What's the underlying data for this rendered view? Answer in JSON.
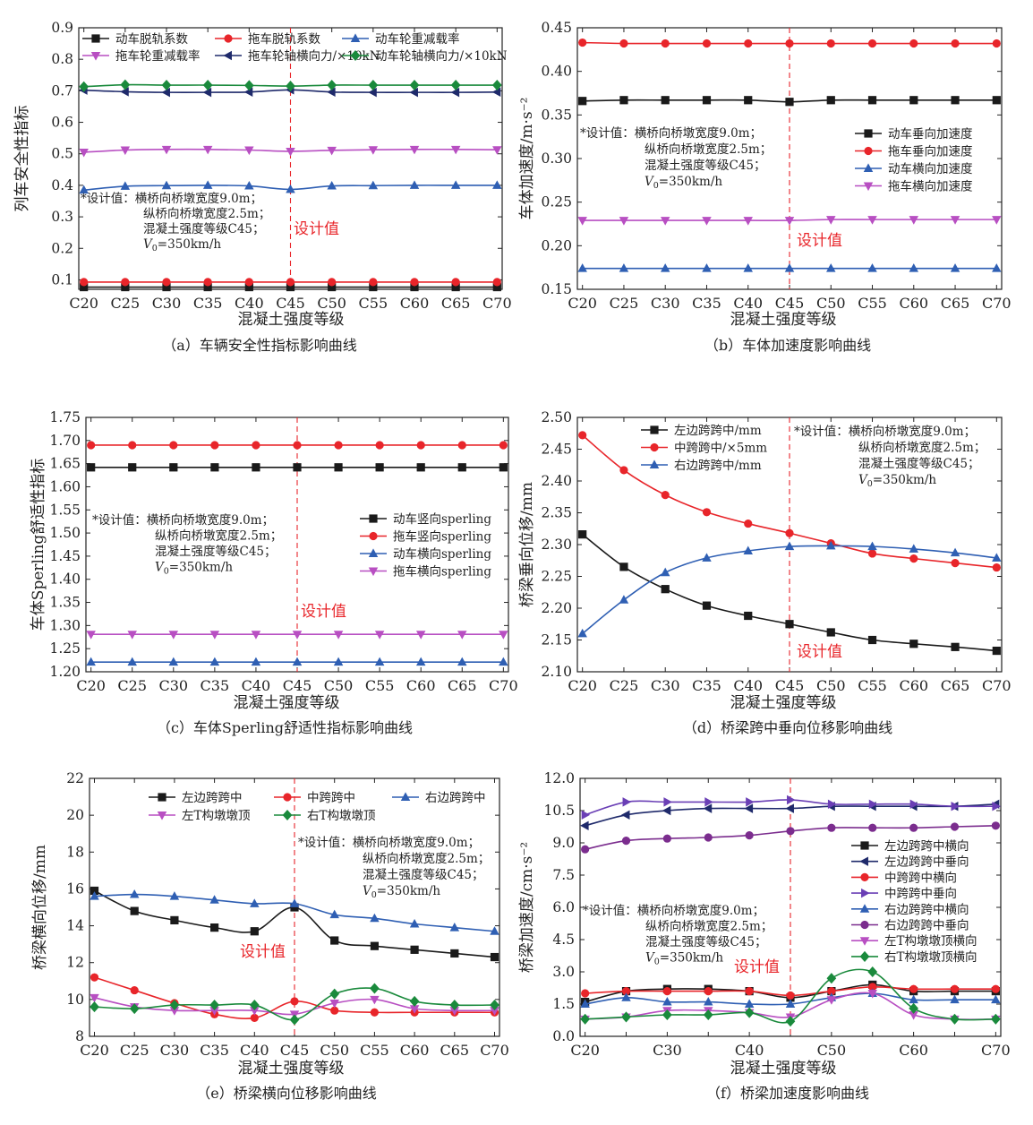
{
  "chart_data": [
    {
      "id": "a",
      "type": "line",
      "caption": "（a）车辆安全性指标影响曲线",
      "xlabel": "混凝土强度等级",
      "ylabel": "列车安全性指标",
      "categories": [
        "C20",
        "C25",
        "C30",
        "C35",
        "C40",
        "C45",
        "C50",
        "C55",
        "C60",
        "C65",
        "C70"
      ],
      "xtick_labels": [
        "C20",
        "C25",
        "C30",
        "C35",
        "C40",
        "C45",
        "C50",
        "C55",
        "C60",
        "C65",
        "C70"
      ],
      "ylim": [
        0.07,
        0.9
      ],
      "yticks": [
        0.1,
        0.2,
        0.3,
        0.4,
        0.5,
        0.6,
        0.7,
        0.8,
        0.9
      ],
      "ytick_labels": [
        "0.1",
        "0.2",
        "0.3",
        "0.4",
        "0.5",
        "0.6",
        "0.7",
        "0.8",
        "0.9"
      ],
      "design_label": "设计值",
      "annotation": [
        "*设计值：横桥向桥墩宽度9.0m；",
        "纵桥向桥墩宽度2.5m；",
        "混凝土强度等级C45；",
        "V0=350km/h"
      ],
      "legend_cols": 3,
      "series": [
        {
          "name": "动车脱轨系数",
          "color": "#1a1a1a",
          "marker": "square",
          "values": [
            0.077,
            0.077,
            0.077,
            0.077,
            0.077,
            0.077,
            0.077,
            0.077,
            0.077,
            0.077,
            0.077
          ]
        },
        {
          "name": "拖车脱轨系数",
          "color": "#e8252a",
          "marker": "circle",
          "values": [
            0.093,
            0.093,
            0.093,
            0.093,
            0.093,
            0.093,
            0.093,
            0.093,
            0.093,
            0.093,
            0.093
          ]
        },
        {
          "name": "动车轮重减载率",
          "color": "#2f5fb3",
          "marker": "triangle-up",
          "values": [
            0.385,
            0.397,
            0.399,
            0.4,
            0.398,
            0.387,
            0.398,
            0.399,
            0.4,
            0.4,
            0.4
          ]
        },
        {
          "name": "拖车轮重减载率",
          "color": "#b84fc2",
          "marker": "triangle-down",
          "values": [
            0.505,
            0.512,
            0.514,
            0.514,
            0.512,
            0.508,
            0.511,
            0.513,
            0.514,
            0.514,
            0.513
          ]
        },
        {
          "name": "拖车轮轴横向力/×10kN",
          "color": "#1f2a6b",
          "marker": "triangle-left",
          "values": [
            0.702,
            0.697,
            0.695,
            0.695,
            0.696,
            0.703,
            0.696,
            0.695,
            0.695,
            0.695,
            0.696
          ]
        },
        {
          "name": "动车轮轴横向力/×10kN",
          "color": "#1a8a3c",
          "marker": "diamond",
          "values": [
            0.713,
            0.719,
            0.718,
            0.718,
            0.717,
            0.715,
            0.718,
            0.718,
            0.718,
            0.718,
            0.718
          ]
        }
      ]
    },
    {
      "id": "b",
      "type": "line",
      "caption": "（b）车体加速度影响曲线",
      "xlabel": "混凝土强度等级",
      "ylabel": "车体加速度/m·s⁻²",
      "categories": [
        "C20",
        "C25",
        "C30",
        "C35",
        "C40",
        "C45",
        "C50",
        "C55",
        "C60",
        "C65",
        "C70"
      ],
      "xtick_labels": [
        "C20",
        "C25",
        "C30",
        "C35",
        "C40",
        "C45",
        "C50",
        "C55",
        "C60",
        "C65",
        "C70"
      ],
      "ylim": [
        0.15,
        0.45
      ],
      "yticks": [
        0.15,
        0.2,
        0.25,
        0.3,
        0.35,
        0.4,
        0.45
      ],
      "ytick_labels": [
        "0.15",
        "0.20",
        "0.25",
        "0.30",
        "0.35",
        "0.40",
        "0.45"
      ],
      "design_label": "设计值",
      "annotation": [
        "*设计值：横桥向桥墩宽度9.0m；",
        "纵桥向桥墩宽度2.5m；",
        "混凝土强度等级C45；",
        "V0=350km/h"
      ],
      "legend_cols": 1,
      "series": [
        {
          "name": "动车垂向加速度",
          "color": "#1a1a1a",
          "marker": "square",
          "values": [
            0.366,
            0.367,
            0.367,
            0.367,
            0.367,
            0.365,
            0.367,
            0.367,
            0.367,
            0.367,
            0.367
          ]
        },
        {
          "name": "拖车垂向加速度",
          "color": "#e8252a",
          "marker": "circle",
          "values": [
            0.433,
            0.432,
            0.432,
            0.432,
            0.432,
            0.432,
            0.432,
            0.432,
            0.432,
            0.432,
            0.432
          ]
        },
        {
          "name": "动车横向加速度",
          "color": "#2f5fb3",
          "marker": "triangle-up",
          "values": [
            0.174,
            0.174,
            0.174,
            0.174,
            0.174,
            0.174,
            0.174,
            0.174,
            0.174,
            0.174,
            0.174
          ]
        },
        {
          "name": "拖车横向加速度",
          "color": "#b84fc2",
          "marker": "triangle-down",
          "values": [
            0.229,
            0.229,
            0.229,
            0.229,
            0.229,
            0.229,
            0.23,
            0.23,
            0.23,
            0.23,
            0.23
          ]
        }
      ]
    },
    {
      "id": "c",
      "type": "line",
      "caption": "（c）车体Sperling舒适性指标影响曲线",
      "xlabel": "混凝土强度等级",
      "ylabel": "车体Sperling舒适性指标",
      "categories": [
        "C20",
        "C25",
        "C30",
        "C35",
        "C40",
        "C45",
        "C50",
        "C55",
        "C60",
        "C65",
        "C70"
      ],
      "xtick_labels": [
        "C20",
        "C25",
        "C30",
        "C35",
        "C40",
        "C45",
        "C50",
        "C55",
        "C60",
        "C65",
        "C70"
      ],
      "ylim": [
        1.2,
        1.75
      ],
      "yticks": [
        1.2,
        1.25,
        1.3,
        1.35,
        1.4,
        1.45,
        1.5,
        1.55,
        1.6,
        1.65,
        1.7,
        1.75
      ],
      "ytick_labels": [
        "1.20",
        "1.25",
        "1.30",
        "1.35",
        "1.40",
        "1.45",
        "1.50",
        "1.55",
        "1.60",
        "1.65",
        "1.70",
        "1.75"
      ],
      "design_label": "设计值",
      "annotation": [
        "*设计值：横桥向桥墩宽度9.0m；",
        "纵桥向桥墩宽度2.5m；",
        "混凝土强度等级C45；",
        "V0=350km/h"
      ],
      "legend_cols": 1,
      "series": [
        {
          "name": "动车竖向sperling",
          "color": "#1a1a1a",
          "marker": "square",
          "values": [
            1.642,
            1.642,
            1.642,
            1.642,
            1.642,
            1.642,
            1.642,
            1.642,
            1.642,
            1.642,
            1.642
          ]
        },
        {
          "name": "拖车竖向sperling",
          "color": "#e8252a",
          "marker": "circle",
          "values": [
            1.69,
            1.69,
            1.69,
            1.69,
            1.69,
            1.69,
            1.69,
            1.69,
            1.69,
            1.69,
            1.69
          ]
        },
        {
          "name": "动车横向sperling",
          "color": "#2f5fb3",
          "marker": "triangle-up",
          "values": [
            1.221,
            1.221,
            1.221,
            1.221,
            1.221,
            1.221,
            1.221,
            1.221,
            1.221,
            1.221,
            1.221
          ]
        },
        {
          "name": "拖车横向sperling",
          "color": "#b84fc2",
          "marker": "triangle-down",
          "values": [
            1.281,
            1.281,
            1.281,
            1.281,
            1.281,
            1.281,
            1.281,
            1.281,
            1.281,
            1.281,
            1.281
          ]
        }
      ]
    },
    {
      "id": "d",
      "type": "line",
      "caption": "（d）桥梁跨中垂向位移影响曲线",
      "xlabel": "混凝土强度等级",
      "ylabel": "桥梁垂向位移/mm",
      "categories": [
        "C20",
        "C25",
        "C30",
        "C35",
        "C40",
        "C45",
        "C50",
        "C55",
        "C60",
        "C65",
        "C70"
      ],
      "xtick_labels": [
        "C20",
        "C25",
        "C30",
        "C35",
        "C40",
        "C45",
        "C50",
        "C55",
        "C60",
        "C65",
        "C70"
      ],
      "ylim": [
        2.1,
        2.5
      ],
      "yticks": [
        2.1,
        2.15,
        2.2,
        2.25,
        2.3,
        2.35,
        2.4,
        2.45,
        2.5
      ],
      "ytick_labels": [
        "2.10",
        "2.15",
        "2.20",
        "2.25",
        "2.30",
        "2.35",
        "2.40",
        "2.45",
        "2.50"
      ],
      "design_label": "设计值",
      "annotation": [
        "*设计值：横桥向桥墩宽度9.0m；",
        "纵桥向桥墩宽度2.5m；",
        "混凝土强度等级C45；",
        "V0=350km/h"
      ],
      "legend_cols": 1,
      "series": [
        {
          "name": "左边跨跨中/mm",
          "color": "#1a1a1a",
          "marker": "square",
          "values": [
            2.316,
            2.265,
            2.23,
            2.204,
            2.188,
            2.175,
            2.162,
            2.15,
            2.144,
            2.139,
            2.133
          ]
        },
        {
          "name": "中跨跨中/×5mm",
          "color": "#e8252a",
          "marker": "circle",
          "values": [
            2.472,
            2.417,
            2.378,
            2.351,
            2.333,
            2.318,
            2.302,
            2.286,
            2.278,
            2.271,
            2.264
          ]
        },
        {
          "name": "右边跨跨中/mm",
          "color": "#2f5fb3",
          "marker": "triangle-up",
          "values": [
            2.16,
            2.213,
            2.256,
            2.279,
            2.29,
            2.297,
            2.298,
            2.297,
            2.293,
            2.287,
            2.279
          ]
        }
      ]
    },
    {
      "id": "e",
      "type": "line",
      "caption": "（e）桥梁横向位移影响曲线",
      "xlabel": "混凝土强度等级",
      "ylabel": "桥梁横向位移/mm",
      "categories": [
        "C20",
        "C25",
        "C30",
        "C35",
        "C40",
        "C45",
        "C50",
        "C55",
        "C60",
        "C65",
        "C70"
      ],
      "xtick_labels": [
        "C20",
        "C25",
        "C30",
        "C35",
        "C40",
        "C45",
        "C50",
        "C55",
        "C60",
        "C65",
        "C70"
      ],
      "ylim": [
        8,
        22
      ],
      "yticks": [
        8,
        10,
        12,
        14,
        16,
        18,
        20,
        22
      ],
      "ytick_labels": [
        "8",
        "10",
        "12",
        "14",
        "16",
        "18",
        "20",
        "22"
      ],
      "design_label": "设计值",
      "annotation": [
        "*设计值：横桥向桥墩宽度9.0m；",
        "纵桥向桥墩宽度2.5m；",
        "混凝土强度等级C45；",
        "V0=350km/h"
      ],
      "legend_cols": 3,
      "series": [
        {
          "name": "左边跨跨中",
          "color": "#1a1a1a",
          "marker": "square",
          "values": [
            15.9,
            14.8,
            14.3,
            13.9,
            13.7,
            15.0,
            13.2,
            12.9,
            12.7,
            12.5,
            12.3
          ]
        },
        {
          "name": "中跨跨中",
          "color": "#e8252a",
          "marker": "circle",
          "values": [
            11.2,
            10.5,
            9.8,
            9.2,
            9.0,
            9.9,
            9.4,
            9.3,
            9.3,
            9.3,
            9.3
          ]
        },
        {
          "name": "右边跨跨中",
          "color": "#2f5fb3",
          "marker": "triangle-up",
          "values": [
            15.6,
            15.7,
            15.6,
            15.4,
            15.2,
            15.2,
            14.6,
            14.4,
            14.1,
            13.9,
            13.7
          ]
        },
        {
          "name": "左T构墩墩顶",
          "color": "#b84fc2",
          "marker": "triangle-down",
          "values": [
            10.1,
            9.6,
            9.4,
            9.4,
            9.4,
            9.2,
            9.8,
            10.0,
            9.5,
            9.4,
            9.4
          ]
        },
        {
          "name": "右T构墩墩顶",
          "color": "#1a8a3c",
          "marker": "diamond",
          "values": [
            9.6,
            9.5,
            9.7,
            9.7,
            9.7,
            8.9,
            10.3,
            10.6,
            9.9,
            9.7,
            9.7
          ]
        }
      ]
    },
    {
      "id": "f",
      "type": "line",
      "caption": "（f）桥梁加速度影响曲线",
      "xlabel": "混凝土强度等级",
      "ylabel": "桥梁加速度/cm·s⁻²",
      "categories": [
        "C20",
        "C25",
        "C30",
        "C35",
        "C40",
        "C45",
        "C50",
        "C55",
        "C60",
        "C65",
        "C70"
      ],
      "xtick_labels": [
        "C20",
        "",
        "C30",
        "",
        "C40",
        "",
        "C50",
        "",
        "C60",
        "",
        "C70"
      ],
      "ylim": [
        0,
        12
      ],
      "yticks": [
        0,
        1.5,
        3,
        4.5,
        6,
        7.5,
        9,
        10.5,
        12
      ],
      "ytick_labels": [
        "0.0",
        "1.5",
        "3.0",
        "4.5",
        "6.0",
        "7.5",
        "9.0",
        "10.5",
        "12.0"
      ],
      "design_label": "设计值",
      "annotation": [
        "*设计值：横桥向桥墩宽度9.0m；",
        "纵桥向桥墩宽度2.5m；",
        "混凝土强度等级C45；",
        "V0=350km/h"
      ],
      "legend_cols": 1,
      "series": [
        {
          "name": "左边跨跨中横向",
          "color": "#1a1a1a",
          "marker": "square",
          "values": [
            1.6,
            2.1,
            2.2,
            2.2,
            2.1,
            1.8,
            2.1,
            2.4,
            2.1,
            2.1,
            2.1
          ]
        },
        {
          "name": "左边跨跨中垂向",
          "color": "#1f2a6b",
          "marker": "triangle-left",
          "values": [
            9.8,
            10.3,
            10.5,
            10.6,
            10.6,
            10.6,
            10.7,
            10.7,
            10.7,
            10.7,
            10.8
          ]
        },
        {
          "name": "中跨跨中横向",
          "color": "#e8252a",
          "marker": "circle",
          "values": [
            2.0,
            2.1,
            2.1,
            2.1,
            2.1,
            1.9,
            2.1,
            2.3,
            2.2,
            2.2,
            2.2
          ]
        },
        {
          "name": "中跨跨中垂向",
          "color": "#6a3fb5",
          "marker": "triangle-right",
          "values": [
            10.3,
            10.9,
            10.9,
            10.9,
            10.9,
            11.0,
            10.8,
            10.8,
            10.8,
            10.7,
            10.7
          ]
        },
        {
          "name": "右边跨跨中横向",
          "color": "#2f5fb3",
          "marker": "triangle-up",
          "values": [
            1.5,
            1.8,
            1.6,
            1.6,
            1.5,
            1.5,
            1.8,
            2.0,
            1.7,
            1.7,
            1.7
          ]
        },
        {
          "name": "右边跨跨中垂向",
          "color": "#7b2d8e",
          "marker": "circle",
          "values": [
            8.7,
            9.1,
            9.2,
            9.25,
            9.35,
            9.55,
            9.7,
            9.7,
            9.7,
            9.75,
            9.8
          ]
        },
        {
          "name": "左T构墩墩顶横向",
          "color": "#b84fc2",
          "marker": "triangle-down",
          "values": [
            0.8,
            0.9,
            1.2,
            1.2,
            1.1,
            0.9,
            1.7,
            2.0,
            1.0,
            0.8,
            0.8
          ]
        },
        {
          "name": "右T构墩墩顶横向",
          "color": "#1a8a3c",
          "marker": "diamond",
          "values": [
            0.8,
            0.9,
            1.0,
            1.0,
            1.1,
            0.7,
            2.7,
            3.0,
            1.3,
            0.8,
            0.8
          ]
        }
      ]
    }
  ]
}
